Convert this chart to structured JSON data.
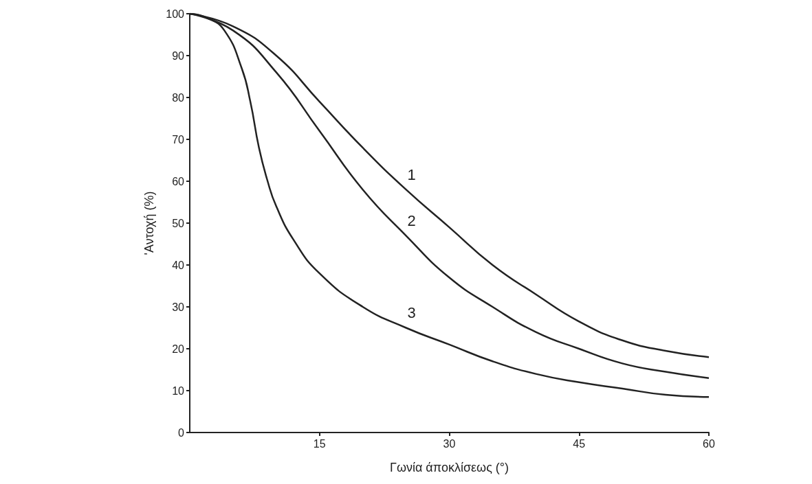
{
  "chart_data": {
    "type": "line",
    "xlabel": "Γωνία άποκλίσεως (°)",
    "ylabel": "'Αντοχή (%)",
    "xlim": [
      0,
      60
    ],
    "xticks": [
      15,
      30,
      45,
      60
    ],
    "ylim": [
      0,
      100
    ],
    "yticks": [
      0,
      10,
      20,
      30,
      40,
      50,
      60,
      70,
      80,
      90,
      100
    ],
    "grid": false,
    "marker": "none",
    "line_style": "solid",
    "series": [
      {
        "name": "1",
        "color": "#222222",
        "x": [
          0,
          5,
          10,
          15,
          20,
          25,
          30,
          35,
          40,
          45,
          50,
          55,
          60
        ],
        "values": [
          100,
          97,
          90,
          79,
          68,
          58,
          49,
          40,
          33,
          26.5,
          22,
          19.5,
          18
        ]
      },
      {
        "name": "2",
        "color": "#222222",
        "x": [
          0,
          5,
          10,
          15,
          20,
          25,
          30,
          35,
          40,
          45,
          50,
          55,
          60
        ],
        "values": [
          100,
          96,
          86,
          72,
          58,
          47,
          37,
          30,
          24,
          20,
          16.5,
          14.5,
          13
        ]
      },
      {
        "name": "3",
        "color": "#222222",
        "x": [
          0,
          2,
          4,
          6,
          7,
          8,
          9,
          10,
          12,
          15,
          20,
          25,
          30,
          35,
          40,
          45,
          50,
          55,
          60
        ],
        "values": [
          100,
          99,
          96,
          87,
          79,
          68,
          60,
          54,
          46,
          38,
          30,
          25,
          21,
          17,
          14,
          12,
          10.5,
          9,
          8.5
        ]
      }
    ]
  }
}
